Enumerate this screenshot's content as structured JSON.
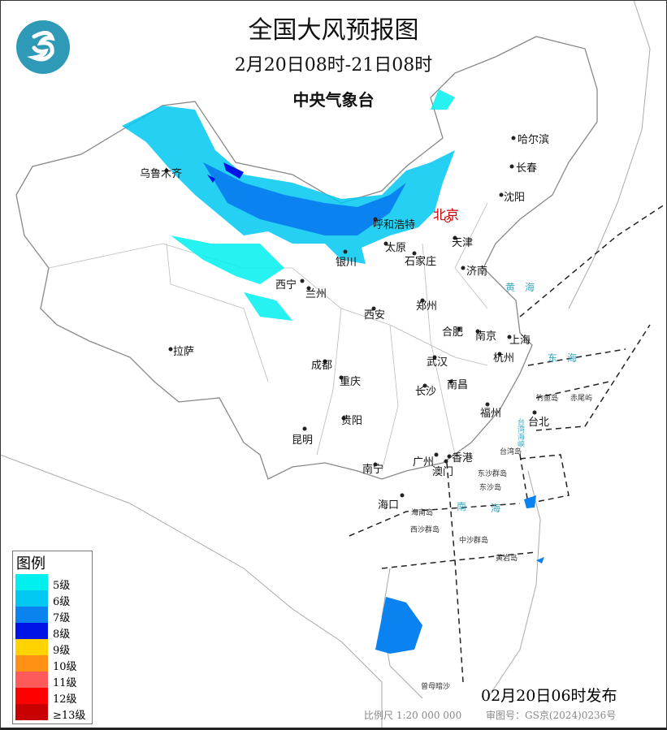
{
  "header": {
    "title": "全国大风预报图",
    "period": "2月20日08时-21日08时",
    "issuer": "中央气象台"
  },
  "cities": [
    "乌鲁木齐",
    "哈尔滨",
    "长春",
    "沈阳",
    "北京",
    "天津",
    "呼和浩特",
    "太原",
    "石家庄",
    "济南",
    "银川",
    "西宁",
    "兰州",
    "西安",
    "郑州",
    "合肥",
    "南京",
    "上海",
    "杭州",
    "武汉",
    "拉萨",
    "成都",
    "重庆",
    "南昌",
    "长沙",
    "贵阳",
    "福州",
    "台北",
    "昆明",
    "南宁",
    "广州",
    "香港",
    "澳门",
    "海口"
  ],
  "seas": [
    "钓鱼岛",
    "赤尾屿",
    "台湾岛",
    "东沙群岛",
    "东沙岛",
    "海南岛",
    "西沙群岛",
    "中沙群岛",
    "黄岩岛",
    "曾母暗沙"
  ],
  "waters": [
    "南",
    "海",
    "东",
    "海",
    "黄",
    "海",
    "台湾海峡"
  ],
  "legend": {
    "title": "图例",
    "items": [
      {
        "label": "5级",
        "color": "#00f0f0"
      },
      {
        "label": "6级",
        "color": "#00c8f0"
      },
      {
        "label": "7级",
        "color": "#0a82f0"
      },
      {
        "label": "8级",
        "color": "#0014e6"
      },
      {
        "label": "9级",
        "color": "#ffd200"
      },
      {
        "label": "10级",
        "color": "#ff9214"
      },
      {
        "label": "11级",
        "color": "#ff5a5a"
      },
      {
        "label": "12级",
        "color": "#ff0000"
      },
      {
        "label": "≥13级",
        "color": "#c80000"
      }
    ]
  },
  "footer": {
    "issued": "02月20日06时发布",
    "scale": "比例尺 1:20 000 000",
    "approval": "审图号：GS京(2024)0236号"
  }
}
